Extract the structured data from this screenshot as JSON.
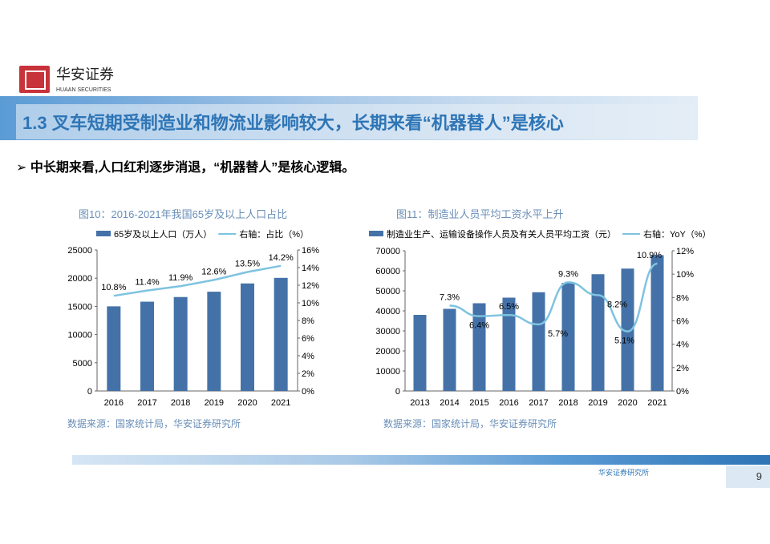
{
  "header": {
    "brand_cn": "华安证券",
    "brand_en": "HUAAN SECURITIES",
    "title": "1.3 叉车短期受制造业和物流业影响较大，长期来看“机器替人”是核心"
  },
  "bullet": "中长期来看,人口红利逐步消退，“机器替人”是核心逻辑。",
  "footer": {
    "org": "华安证券研究所",
    "page": "9"
  },
  "colors": {
    "bar": "#4472a8",
    "line": "#7ec3e0",
    "title": "#2e75b6"
  },
  "chart_data": [
    {
      "type": "bar+line",
      "title": "图10：2016-2021年我国65岁及以上人口占比",
      "categories": [
        "2016",
        "2017",
        "2018",
        "2019",
        "2020",
        "2021"
      ],
      "series": [
        {
          "name": "65岁及以上人口（万人）",
          "type": "bar",
          "values": [
            15003,
            15831,
            16658,
            17603,
            19064,
            20056
          ]
        },
        {
          "name": "右轴：占比（%）",
          "type": "line",
          "axis": "right",
          "values": [
            10.8,
            11.4,
            11.9,
            12.6,
            13.5,
            14.2
          ],
          "labels": [
            "10.8%",
            "11.4%",
            "11.9%",
            "12.6%",
            "13.5%",
            "14.2%"
          ]
        }
      ],
      "ylim": [
        0,
        25000
      ],
      "yticks": [
        "0",
        "5000",
        "10000",
        "15000",
        "20000",
        "25000"
      ],
      "y2lim": [
        0,
        16
      ],
      "y2ticks": [
        "0%",
        "2%",
        "4%",
        "6%",
        "8%",
        "10%",
        "12%",
        "14%",
        "16%"
      ],
      "source": "数据来源：国家统计局，华安证券研究所",
      "legend": "top"
    },
    {
      "type": "bar+line",
      "title": "图11：制造业人员平均工资水平上升",
      "categories": [
        "2013",
        "2014",
        "2015",
        "2016",
        "2017",
        "2018",
        "2019",
        "2020",
        "2021"
      ],
      "series": [
        {
          "name": "制造业生产、运输设备操作人员及有关人员平均工资（元）",
          "type": "bar",
          "values": [
            38000,
            41000,
            43800,
            46600,
            49300,
            54000,
            58300,
            61100,
            67800
          ]
        },
        {
          "name": "右轴：YoY（%）",
          "type": "line",
          "axis": "right",
          "values": [
            null,
            7.3,
            6.4,
            6.5,
            5.7,
            9.3,
            8.2,
            5.1,
            10.9
          ],
          "labels": [
            "",
            "7.3%",
            "6.4%",
            "6.5%",
            "5.7%",
            "9.3%",
            "8.2%",
            "5.1%",
            "10.9%"
          ]
        }
      ],
      "ylim": [
        0,
        70000
      ],
      "yticks": [
        "0",
        "10000",
        "20000",
        "30000",
        "40000",
        "50000",
        "60000",
        "70000"
      ],
      "y2lim": [
        0,
        12
      ],
      "y2ticks": [
        "0%",
        "2%",
        "4%",
        "6%",
        "8%",
        "10%",
        "12%"
      ],
      "source": "数据来源：国家统计局，华安证券研究所",
      "legend": "top"
    }
  ]
}
